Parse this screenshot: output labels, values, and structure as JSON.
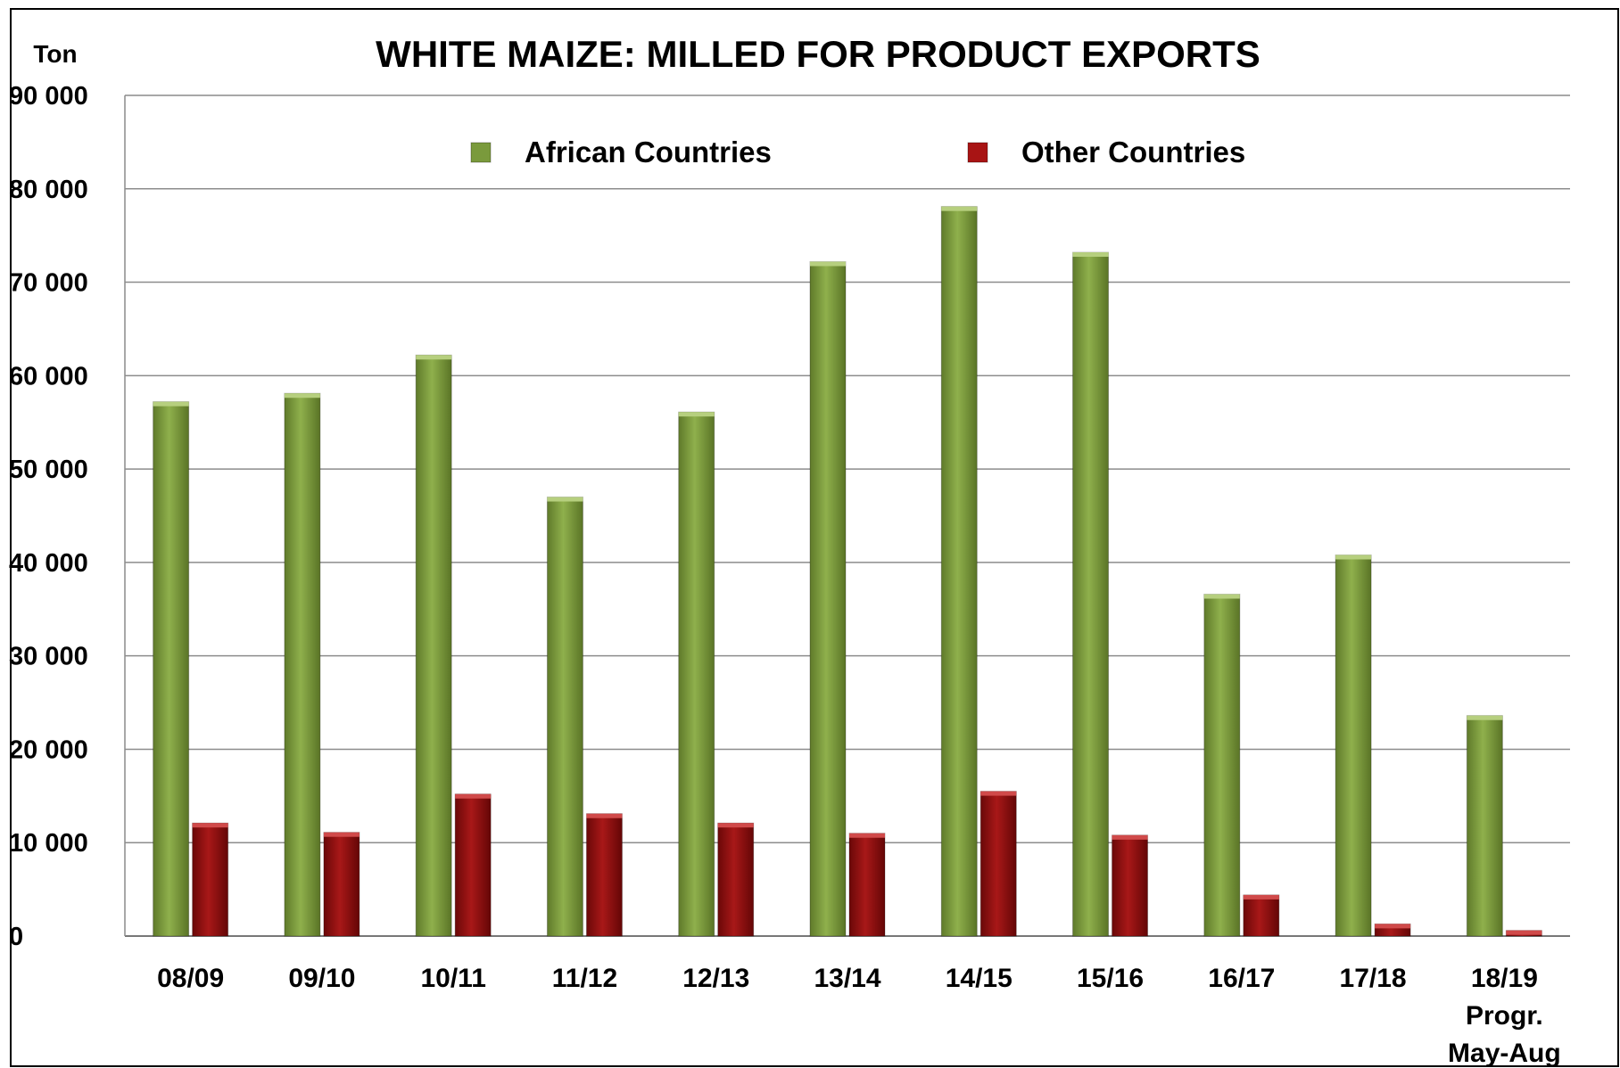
{
  "chart_data": {
    "type": "bar",
    "title": "WHITE MAIZE: MILLED FOR PRODUCT EXPORTS",
    "ylabel": "Ton",
    "xlabel": "",
    "ylim": [
      0,
      90000
    ],
    "yticks": [
      "0",
      "10 000",
      "20 000",
      "30 000",
      "40 000",
      "50 000",
      "60 000",
      "70 000",
      "80 000",
      "90 000"
    ],
    "grid": true,
    "legend_position": "top",
    "categories": [
      [
        "08/09"
      ],
      [
        "09/10"
      ],
      [
        "10/11"
      ],
      [
        "11/12"
      ],
      [
        "12/13"
      ],
      [
        "13/14"
      ],
      [
        "14/15"
      ],
      [
        "15/16"
      ],
      [
        "16/17"
      ],
      [
        "17/18"
      ],
      [
        "18/19",
        "Progr.",
        "May-Aug"
      ]
    ],
    "series": [
      {
        "name": "African Countries",
        "color": "#7a9a3c",
        "values": [
          57200,
          58100,
          62200,
          47000,
          56100,
          72200,
          78100,
          73200,
          36600,
          40800,
          23600
        ]
      },
      {
        "name": "Other Countries",
        "color": "#8b0f0f",
        "values": [
          12100,
          11100,
          15200,
          13100,
          12100,
          11000,
          15500,
          10800,
          4400,
          1300,
          600
        ]
      }
    ]
  }
}
